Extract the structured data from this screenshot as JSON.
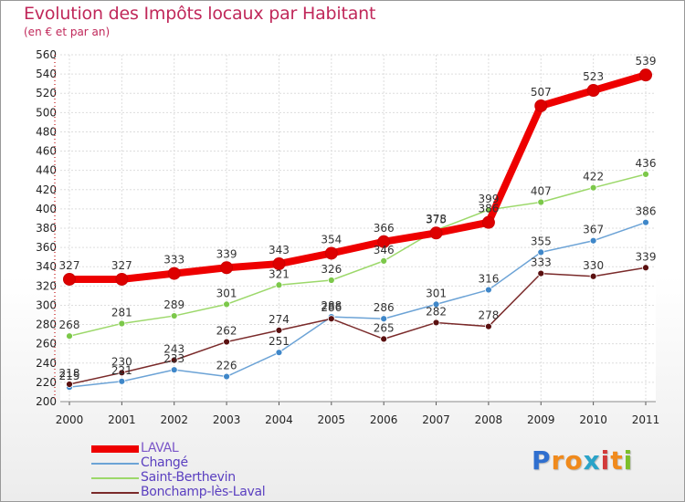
{
  "title": "Evolution des Impôts locaux par Habitant",
  "subtitle": "(en € et par an)",
  "logo": {
    "letters": [
      "P",
      "r",
      "o",
      "x",
      "i",
      "t",
      "i"
    ],
    "colors": [
      "#2f6fcf",
      "#f08a1c",
      "#f08a1c",
      "#2aa3c8",
      "#d23a3a",
      "#f08a1c",
      "#7cbf2a"
    ]
  },
  "chart_data": {
    "type": "line",
    "categories": [
      "2000",
      "2001",
      "2002",
      "2003",
      "2004",
      "2005",
      "2006",
      "2007",
      "2008",
      "2009",
      "2010",
      "2011"
    ],
    "ylim": [
      200,
      560
    ],
    "yticks": [
      "200",
      "220",
      "240",
      "260",
      "280",
      "300",
      "320",
      "340",
      "360",
      "380",
      "400",
      "420",
      "440",
      "460",
      "480",
      "500",
      "520",
      "540",
      "560"
    ],
    "grid": true,
    "legend_position": "bottom-left",
    "series": [
      {
        "name": "LAVAL",
        "color": "#ee0000",
        "marker_color": "#dd0000",
        "label_color": "#6a5ab5",
        "width": 8,
        "values": [
          327,
          327,
          333,
          339,
          343,
          354,
          366,
          375,
          386,
          507,
          523,
          539
        ],
        "labels": [
          "327",
          "327",
          "333",
          "339",
          "343",
          "354",
          "366",
          "375",
          "386",
          "507",
          "523",
          "539"
        ]
      },
      {
        "name": "Changé",
        "color": "#6ca3d6",
        "marker_color": "#3f87c9",
        "label_color": "#6a5ab5",
        "width": 1.5,
        "values": [
          215,
          221,
          233,
          226,
          251,
          288,
          286,
          301,
          316,
          355,
          367,
          386
        ],
        "labels": [
          "215",
          "221",
          "233",
          "226",
          "251",
          "288",
          "286",
          "301",
          "316",
          "355",
          "367",
          "386"
        ]
      },
      {
        "name": "Saint-Berthevin",
        "color": "#9cd86a",
        "marker_color": "#7cc84a",
        "label_color": "#6a5ab5",
        "width": 1.5,
        "values": [
          268,
          281,
          289,
          301,
          321,
          326,
          346,
          378,
          399,
          407,
          422,
          436
        ],
        "labels": [
          "268",
          "281",
          "289",
          "301",
          "321",
          "326",
          "346",
          "378",
          "399",
          "407",
          "422",
          "436"
        ]
      },
      {
        "name": "Bonchamp-lès-Laval",
        "color": "#7a2a2a",
        "marker_color": "#5a1010",
        "label_color": "#6a5ab5",
        "width": 1.5,
        "values": [
          218,
          230,
          243,
          262,
          274,
          286,
          265,
          282,
          278,
          333,
          330,
          339
        ],
        "labels": [
          "218",
          "230",
          "243",
          "262",
          "274",
          "286",
          "265",
          "282",
          "278",
          "333",
          "330",
          "339"
        ]
      }
    ]
  }
}
